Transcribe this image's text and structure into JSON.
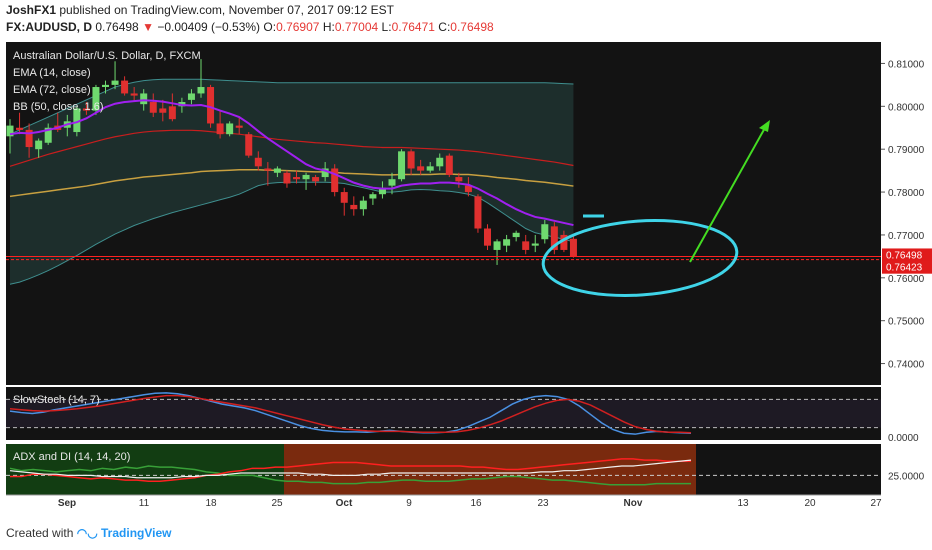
{
  "header": {
    "author": "JoshFX1",
    "published_text": "published on TradingView.com, November 07, 2017 09:12 EST",
    "symbol": "FX:AUDUSD, D",
    "last": "0.76498",
    "change_arrow": "▼",
    "change": "−0.00409 (−0.53%)",
    "open_label": "O:",
    "open": "0.76907",
    "high_label": "H:",
    "high": "0.77004",
    "low_label": "L:",
    "low": "0.76471",
    "close_label": "C:",
    "close": "0.76498"
  },
  "footer": {
    "created_with": "Created with",
    "brand": "TradingView"
  },
  "colors": {
    "background": "#131313",
    "bull": "#6fd96f",
    "bear": "#e0302f",
    "ema14": "#a020f0",
    "ema72": "#c8a040",
    "bb_mid": "#c81e1e",
    "bb_band": "#3f8f8f",
    "annotation": "#3fd4e8",
    "arrow": "#44dd22",
    "price_line": "#ff2222"
  },
  "chart_data": {
    "type": "candlestick",
    "legend": [
      "Australian Dollar/U.S. Dollar, D, FXCM",
      "EMA (14, close)",
      "EMA (72, close)",
      "BB (50, close, 1.6)"
    ],
    "ylim": [
      0.735,
      0.815
    ],
    "y_ticks": [
      "0.81000",
      "0.80000",
      "0.79000",
      "0.78000",
      "0.77000",
      "0.76000",
      "0.75000",
      "0.74000"
    ],
    "x_ticks": [
      "Sep",
      "11",
      "18",
      "25",
      "Oct",
      "9",
      "16",
      "23",
      "Nov",
      "13",
      "20",
      "27"
    ],
    "price_labels": [
      "0.76498",
      "0.76423"
    ],
    "candles": [
      {
        "o": 0.793,
        "h": 0.797,
        "l": 0.789,
        "c": 0.7955
      },
      {
        "o": 0.795,
        "h": 0.7985,
        "l": 0.7935,
        "c": 0.7945
      },
      {
        "o": 0.7945,
        "h": 0.796,
        "l": 0.788,
        "c": 0.7905
      },
      {
        "o": 0.79,
        "h": 0.7925,
        "l": 0.788,
        "c": 0.792
      },
      {
        "o": 0.7915,
        "h": 0.796,
        "l": 0.791,
        "c": 0.795
      },
      {
        "o": 0.7955,
        "h": 0.7985,
        "l": 0.794,
        "c": 0.7945
      },
      {
        "o": 0.795,
        "h": 0.798,
        "l": 0.793,
        "c": 0.7965
      },
      {
        "o": 0.794,
        "h": 0.8,
        "l": 0.793,
        "c": 0.7995
      },
      {
        "o": 0.7995,
        "h": 0.801,
        "l": 0.798,
        "c": 0.799
      },
      {
        "o": 0.799,
        "h": 0.805,
        "l": 0.798,
        "c": 0.8045
      },
      {
        "o": 0.8045,
        "h": 0.806,
        "l": 0.803,
        "c": 0.805
      },
      {
        "o": 0.805,
        "h": 0.8105,
        "l": 0.804,
        "c": 0.806
      },
      {
        "o": 0.806,
        "h": 0.807,
        "l": 0.8025,
        "c": 0.803
      },
      {
        "o": 0.803,
        "h": 0.8045,
        "l": 0.801,
        "c": 0.8025
      },
      {
        "o": 0.8005,
        "h": 0.804,
        "l": 0.799,
        "c": 0.803
      },
      {
        "o": 0.801,
        "h": 0.803,
        "l": 0.7975,
        "c": 0.7985
      },
      {
        "o": 0.7995,
        "h": 0.8015,
        "l": 0.7965,
        "c": 0.7985
      },
      {
        "o": 0.8,
        "h": 0.803,
        "l": 0.7965,
        "c": 0.797
      },
      {
        "o": 0.8,
        "h": 0.802,
        "l": 0.7985,
        "c": 0.801
      },
      {
        "o": 0.8015,
        "h": 0.804,
        "l": 0.8005,
        "c": 0.803
      },
      {
        "o": 0.803,
        "h": 0.811,
        "l": 0.802,
        "c": 0.8045
      },
      {
        "o": 0.8045,
        "h": 0.805,
        "l": 0.795,
        "c": 0.796
      },
      {
        "o": 0.796,
        "h": 0.799,
        "l": 0.7925,
        "c": 0.7935
      },
      {
        "o": 0.7935,
        "h": 0.7965,
        "l": 0.793,
        "c": 0.796
      },
      {
        "o": 0.7955,
        "h": 0.7975,
        "l": 0.7935,
        "c": 0.795
      },
      {
        "o": 0.7935,
        "h": 0.794,
        "l": 0.788,
        "c": 0.7885
      },
      {
        "o": 0.788,
        "h": 0.7895,
        "l": 0.785,
        "c": 0.786
      },
      {
        "o": 0.7855,
        "h": 0.787,
        "l": 0.7815,
        "c": 0.785
      },
      {
        "o": 0.7845,
        "h": 0.786,
        "l": 0.7835,
        "c": 0.7855
      },
      {
        "o": 0.7845,
        "h": 0.785,
        "l": 0.781,
        "c": 0.782
      },
      {
        "o": 0.7835,
        "h": 0.785,
        "l": 0.782,
        "c": 0.783
      },
      {
        "o": 0.783,
        "h": 0.7845,
        "l": 0.7805,
        "c": 0.784
      },
      {
        "o": 0.7835,
        "h": 0.784,
        "l": 0.7815,
        "c": 0.7825
      },
      {
        "o": 0.7835,
        "h": 0.787,
        "l": 0.7825,
        "c": 0.7855
      },
      {
        "o": 0.7855,
        "h": 0.7865,
        "l": 0.779,
        "c": 0.78
      },
      {
        "o": 0.78,
        "h": 0.781,
        "l": 0.7745,
        "c": 0.7775
      },
      {
        "o": 0.777,
        "h": 0.779,
        "l": 0.7745,
        "c": 0.776
      },
      {
        "o": 0.776,
        "h": 0.779,
        "l": 0.7745,
        "c": 0.778
      },
      {
        "o": 0.7785,
        "h": 0.78,
        "l": 0.777,
        "c": 0.7795
      },
      {
        "o": 0.7795,
        "h": 0.7825,
        "l": 0.7785,
        "c": 0.781
      },
      {
        "o": 0.7815,
        "h": 0.7845,
        "l": 0.7795,
        "c": 0.783
      },
      {
        "o": 0.783,
        "h": 0.79,
        "l": 0.7825,
        "c": 0.7895
      },
      {
        "o": 0.7895,
        "h": 0.79,
        "l": 0.784,
        "c": 0.7855
      },
      {
        "o": 0.786,
        "h": 0.7875,
        "l": 0.784,
        "c": 0.785
      },
      {
        "o": 0.785,
        "h": 0.787,
        "l": 0.7845,
        "c": 0.786
      },
      {
        "o": 0.786,
        "h": 0.789,
        "l": 0.785,
        "c": 0.788
      },
      {
        "o": 0.7885,
        "h": 0.789,
        "l": 0.7835,
        "c": 0.784
      },
      {
        "o": 0.7835,
        "h": 0.7845,
        "l": 0.781,
        "c": 0.7825
      },
      {
        "o": 0.7815,
        "h": 0.7835,
        "l": 0.779,
        "c": 0.78
      },
      {
        "o": 0.779,
        "h": 0.7795,
        "l": 0.7705,
        "c": 0.7715
      },
      {
        "o": 0.7715,
        "h": 0.7725,
        "l": 0.7665,
        "c": 0.7675
      },
      {
        "o": 0.7665,
        "h": 0.769,
        "l": 0.763,
        "c": 0.7685
      },
      {
        "o": 0.7675,
        "h": 0.77,
        "l": 0.766,
        "c": 0.769
      },
      {
        "o": 0.7695,
        "h": 0.771,
        "l": 0.7685,
        "c": 0.7705
      },
      {
        "o": 0.7685,
        "h": 0.77,
        "l": 0.7655,
        "c": 0.7665
      },
      {
        "o": 0.7675,
        "h": 0.77,
        "l": 0.766,
        "c": 0.768
      },
      {
        "o": 0.769,
        "h": 0.7735,
        "l": 0.768,
        "c": 0.7725
      },
      {
        "o": 0.772,
        "h": 0.773,
        "l": 0.7655,
        "c": 0.7665
      },
      {
        "o": 0.77,
        "h": 0.771,
        "l": 0.766,
        "c": 0.7665
      },
      {
        "o": 0.7691,
        "h": 0.77,
        "l": 0.7647,
        "c": 0.765
      }
    ],
    "ema14": [
      0.7935,
      0.7938,
      0.7937,
      0.794,
      0.7945,
      0.795,
      0.7958,
      0.7963,
      0.7972,
      0.7985,
      0.7998,
      0.8006,
      0.801,
      0.8012,
      0.8014,
      0.8013,
      0.8011,
      0.8007,
      0.8003,
      0.8002,
      0.8003,
      0.7998,
      0.799,
      0.7983,
      0.7975,
      0.796,
      0.7942,
      0.7925,
      0.791,
      0.7895,
      0.788,
      0.7865,
      0.7855,
      0.785,
      0.7842,
      0.7832,
      0.7822,
      0.7815,
      0.781,
      0.7808,
      0.7808,
      0.7815,
      0.7818,
      0.782,
      0.782,
      0.7822,
      0.7822,
      0.782,
      0.7817,
      0.7808,
      0.7796,
      0.7785,
      0.7772,
      0.776,
      0.775,
      0.7742,
      0.7738,
      0.7733,
      0.7728,
      0.7723
    ],
    "ema72": [
      0.779,
      0.7793,
      0.7796,
      0.7799,
      0.7802,
      0.7805,
      0.7808,
      0.7811,
      0.7814,
      0.7818,
      0.7822,
      0.7826,
      0.7829,
      0.7832,
      0.7835,
      0.7837,
      0.7839,
      0.7841,
      0.7843,
      0.7845,
      0.7848,
      0.7849,
      0.785,
      0.7851,
      0.7852,
      0.7852,
      0.7852,
      0.7851,
      0.7851,
      0.785,
      0.7849,
      0.7848,
      0.7847,
      0.7847,
      0.7846,
      0.7844,
      0.7843,
      0.7842,
      0.7841,
      0.784,
      0.784,
      0.7841,
      0.7841,
      0.7841,
      0.7841,
      0.7842,
      0.7842,
      0.7841,
      0.7841,
      0.7839,
      0.7837,
      0.7834,
      0.7832,
      0.783,
      0.7827,
      0.7825,
      0.7823,
      0.782,
      0.7817,
      0.7814
    ],
    "bb_mid": [
      0.786,
      0.7867,
      0.7874,
      0.7881,
      0.7888,
      0.7894,
      0.79,
      0.7906,
      0.7912,
      0.7918,
      0.7924,
      0.7929,
      0.7933,
      0.7937,
      0.794,
      0.7942,
      0.7943,
      0.7944,
      0.7944,
      0.7944,
      0.7943,
      0.7941,
      0.7939,
      0.7937,
      0.7935,
      0.7932,
      0.7929,
      0.7926,
      0.7923,
      0.7921,
      0.7919,
      0.7917,
      0.7915,
      0.7914,
      0.7912,
      0.791,
      0.7908,
      0.7906,
      0.7905,
      0.7904,
      0.7904,
      0.7904,
      0.7903,
      0.7902,
      0.7901,
      0.79,
      0.7899,
      0.7898,
      0.7896,
      0.7894,
      0.7891,
      0.7888,
      0.7885,
      0.7882,
      0.7879,
      0.7876,
      0.7873,
      0.787,
      0.7866,
      0.7862
    ],
    "bb_upper": [
      0.7935,
      0.7945,
      0.7955,
      0.7965,
      0.7975,
      0.7985,
      0.7995,
      0.8005,
      0.8015,
      0.8025,
      0.8035,
      0.8045,
      0.8051,
      0.8056,
      0.806,
      0.8062,
      0.8063,
      0.8063,
      0.8063,
      0.8063,
      0.8063,
      0.8062,
      0.8061,
      0.806,
      0.8059,
      0.8058,
      0.8057,
      0.8056,
      0.8055,
      0.8055,
      0.8055,
      0.8055,
      0.8055,
      0.8055,
      0.8055,
      0.8055,
      0.8055,
      0.8055,
      0.8055,
      0.8055,
      0.8055,
      0.8055,
      0.8055,
      0.8055,
      0.8055,
      0.8055,
      0.8055,
      0.8055,
      0.8055,
      0.8055,
      0.8055,
      0.8055,
      0.8055,
      0.8055,
      0.8055,
      0.8055,
      0.8055,
      0.8054,
      0.8053,
      0.8052
    ],
    "bb_lower": [
      0.7585,
      0.759,
      0.7598,
      0.7607,
      0.7617,
      0.7628,
      0.764,
      0.7652,
      0.7665,
      0.7678,
      0.769,
      0.7702,
      0.7712,
      0.7722,
      0.773,
      0.7738,
      0.7745,
      0.7752,
      0.7758,
      0.7764,
      0.777,
      0.7776,
      0.7782,
      0.7788,
      0.7795,
      0.7805,
      0.7815,
      0.782,
      0.7822,
      0.7823,
      0.7823,
      0.7823,
      0.7823,
      0.7823,
      0.7822,
      0.782,
      0.7815,
      0.781,
      0.7805,
      0.78,
      0.78,
      0.7802,
      0.7805,
      0.7806,
      0.7805,
      0.7803,
      0.7802,
      0.7799,
      0.7795,
      0.7788,
      0.7775,
      0.776,
      0.7745,
      0.773,
      0.7715,
      0.7705,
      0.77,
      0.7695,
      0.769,
      0.7684
    ],
    "stoch": {
      "name": "SlowStoch (14, 7)",
      "label": "0.0000",
      "k": [
        55,
        52,
        50,
        53,
        58,
        62,
        66,
        70,
        74,
        78,
        82,
        86,
        90,
        93,
        94,
        92,
        88,
        82,
        76,
        70,
        66,
        62,
        56,
        48,
        40,
        32,
        24,
        18,
        14,
        12,
        11,
        11,
        10,
        12,
        14,
        12,
        10,
        9,
        9,
        10,
        14,
        22,
        32,
        42,
        56,
        70,
        80,
        86,
        88,
        86,
        80,
        66,
        48,
        30,
        16,
        8,
        6,
        10,
        12,
        10,
        9,
        8
      ],
      "d": [
        60,
        58,
        56,
        55,
        56,
        58,
        60,
        63,
        66,
        70,
        74,
        78,
        82,
        85,
        88,
        88,
        86,
        82,
        78,
        74,
        70,
        66,
        62,
        56,
        50,
        44,
        38,
        32,
        26,
        21,
        17,
        15,
        13,
        12,
        12,
        12,
        11,
        10,
        10,
        10,
        11,
        14,
        19,
        26,
        34,
        44,
        54,
        64,
        72,
        78,
        80,
        76,
        68,
        56,
        44,
        32,
        22,
        16,
        12,
        10,
        10,
        9
      ]
    },
    "adx": {
      "name": "ADX and DI (14, 14, 20)",
      "label": "25.0000",
      "adx": [
        24,
        23,
        22,
        21,
        21,
        20,
        20,
        20,
        19,
        19,
        19,
        18,
        18,
        18,
        18,
        19,
        19,
        20,
        20,
        21,
        22,
        22,
        22,
        22,
        22,
        22,
        21,
        21,
        20,
        20,
        20,
        21,
        21,
        22,
        22,
        22,
        22,
        22,
        22,
        22,
        22,
        22,
        22,
        22,
        22,
        22,
        23,
        23,
        24,
        24,
        25,
        26,
        27,
        28,
        28,
        29,
        30,
        31,
        32,
        33
      ],
      "di_plus": [
        26,
        24,
        25,
        24,
        23,
        24,
        25,
        24,
        26,
        25,
        27,
        26,
        28,
        27,
        27,
        26,
        25,
        23,
        22,
        20,
        20,
        20,
        18,
        16,
        15,
        15,
        14,
        14,
        13,
        13,
        13,
        14,
        14,
        15,
        16,
        16,
        15,
        15,
        15,
        16,
        17,
        17,
        18,
        19,
        19,
        18,
        17,
        16,
        16,
        15,
        14,
        13,
        12,
        12,
        12,
        12,
        13,
        13,
        13,
        13
      ],
      "di_minus": [
        19,
        19,
        21,
        21,
        20,
        19,
        18,
        17,
        18,
        17,
        16,
        16,
        15,
        15,
        16,
        17,
        18,
        20,
        21,
        23,
        24,
        26,
        26,
        27,
        27,
        28,
        29,
        30,
        31,
        31,
        31,
        30,
        29,
        28,
        28,
        28,
        28,
        28,
        28,
        28,
        27,
        27,
        26,
        25,
        25,
        26,
        27,
        28,
        29,
        30,
        31,
        32,
        33,
        34,
        34,
        33,
        33,
        32,
        32,
        32
      ]
    }
  }
}
